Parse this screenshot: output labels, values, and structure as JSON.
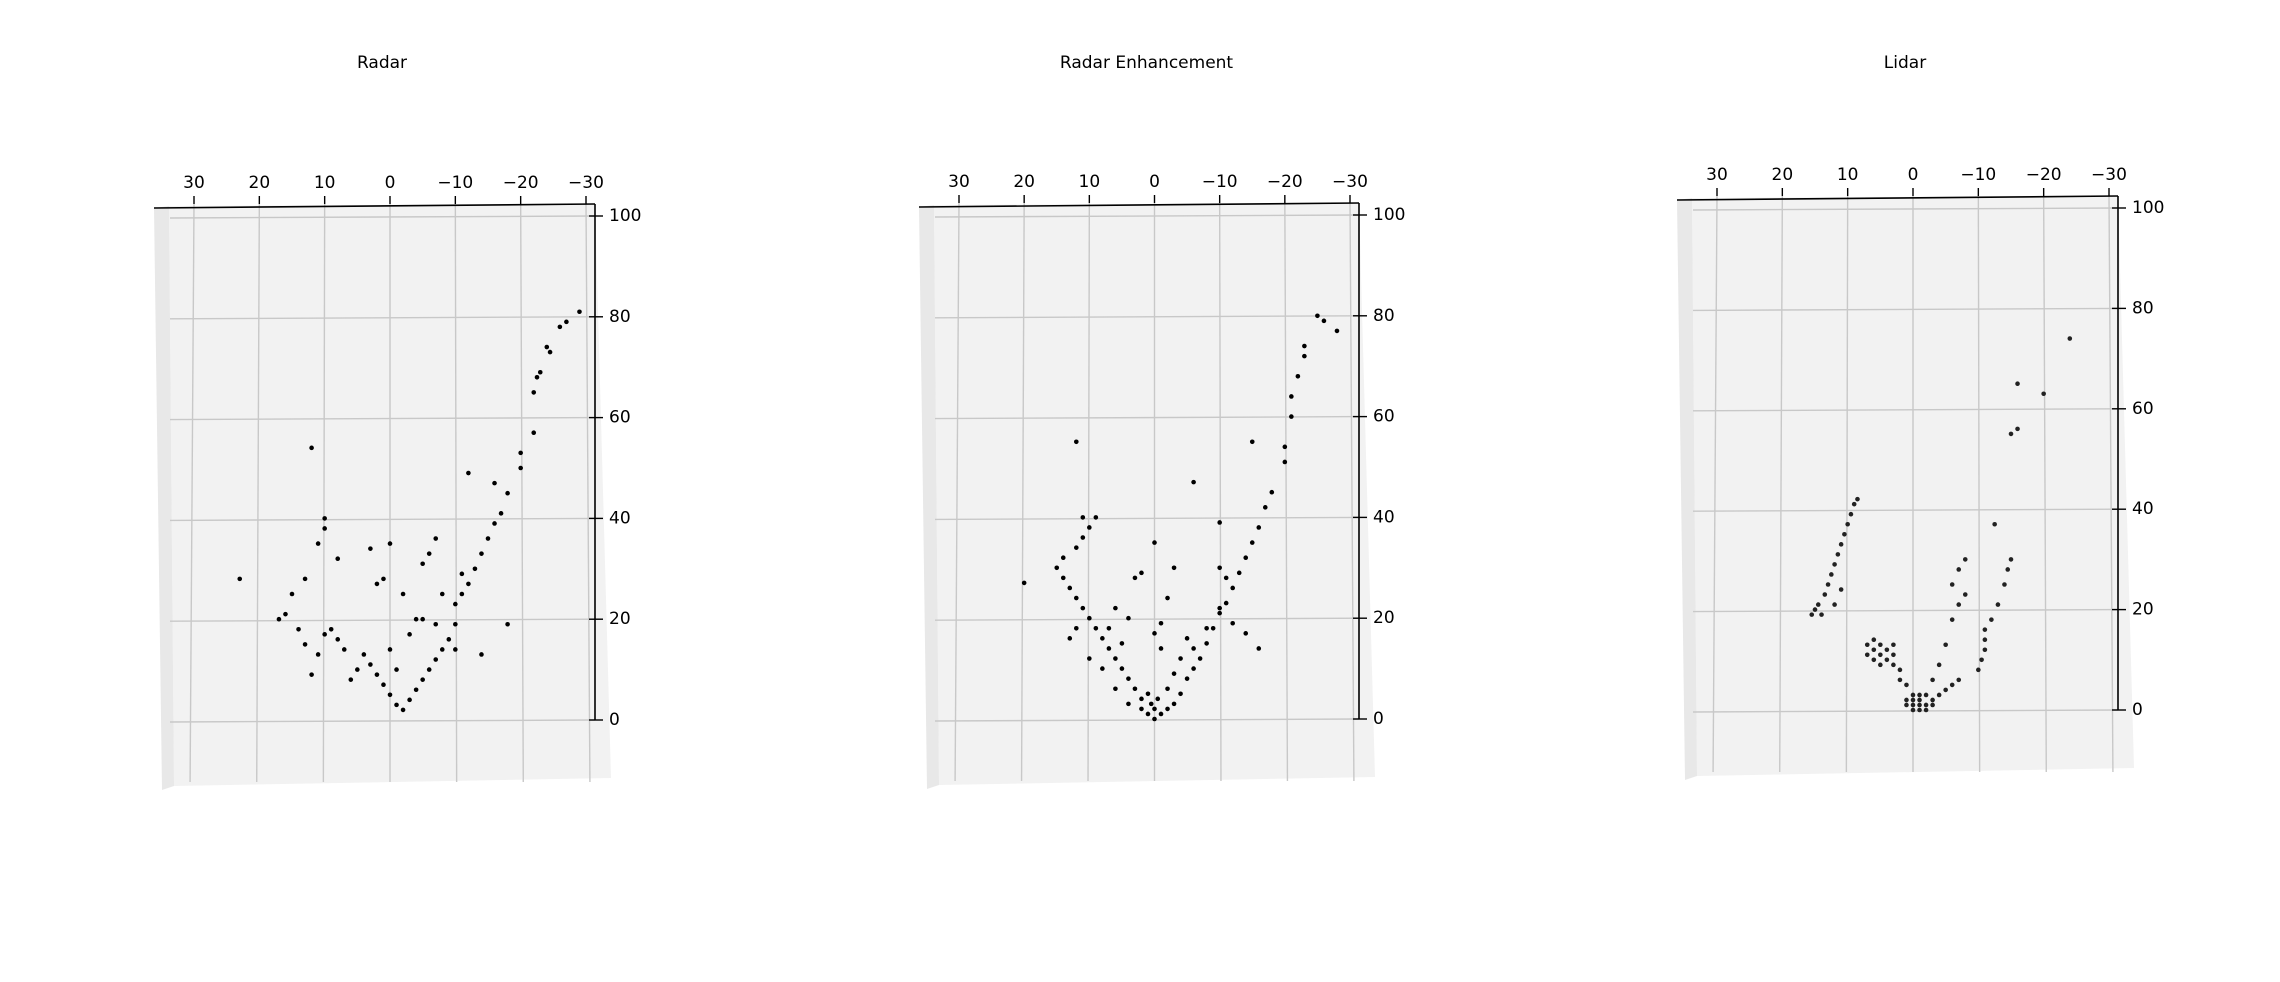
{
  "chart_data": [
    {
      "type": "scatter",
      "title": "Radar",
      "color": "#000000",
      "x": [
        -26,
        -27,
        -29,
        -24,
        -24.5,
        -23,
        -22.5,
        -22,
        -22,
        -20,
        -20,
        -18,
        -16,
        -17,
        -16,
        -15,
        -14,
        -13,
        -12,
        -11,
        -10,
        -10,
        -9,
        -8,
        -7,
        -6,
        -5,
        -4,
        -3,
        -2,
        -1,
        0,
        1,
        2,
        3,
        4,
        5,
        6,
        7,
        8,
        9,
        10,
        11,
        12,
        13,
        -1,
        0,
        -3,
        -5,
        -7,
        -10,
        -14,
        -6,
        -7,
        -5,
        1,
        2,
        12,
        10,
        10,
        11,
        8,
        13,
        15,
        16,
        17,
        14,
        23,
        -12,
        -18,
        -11,
        -4,
        -2,
        0,
        3,
        -8
      ],
      "values": [
        78,
        79,
        81,
        74,
        73,
        69,
        68,
        65,
        57,
        53,
        50,
        45,
        47,
        41,
        39,
        36,
        33,
        30,
        27,
        25,
        23,
        19,
        16,
        14,
        12,
        10,
        8,
        6,
        4,
        2,
        3,
        5,
        7,
        9,
        11,
        13,
        10,
        8,
        14,
        16,
        18,
        17,
        13,
        9,
        15,
        10,
        14,
        17,
        20,
        19,
        14,
        13,
        33,
        36,
        31,
        28,
        27,
        54,
        40,
        38,
        35,
        32,
        28,
        25,
        21,
        20,
        18,
        28,
        49,
        19,
        29,
        20,
        25,
        35,
        34,
        25
      ],
      "xlim": [
        30,
        -30
      ],
      "ylim": [
        0,
        100
      ],
      "xticks": [
        30,
        20,
        10,
        0,
        {
          "value": -10,
          "label": "−10"
        },
        {
          "value": -20,
          "label": "−20"
        },
        {
          "value": -30,
          "label": "−30"
        }
      ],
      "yticks": [
        0,
        20,
        40,
        60,
        80,
        100
      ],
      "grid": true
    },
    {
      "type": "scatter",
      "title": "Radar Enhancement",
      "color": "#000000",
      "x": [
        -25,
        -26,
        -28,
        -23,
        -23,
        -22,
        -21,
        -21,
        -20,
        -20,
        -18,
        -17,
        -16,
        -15,
        -14,
        -13,
        -12,
        -11,
        -10,
        -9,
        -8,
        -7,
        -6,
        -5,
        -4,
        -3,
        -2,
        -1,
        0,
        0,
        1,
        0.5,
        -0.5,
        1,
        2,
        3,
        4,
        5,
        6,
        7,
        8,
        9,
        10,
        11,
        12,
        13,
        14,
        15,
        11,
        10,
        11,
        9,
        12,
        14,
        20,
        13,
        12,
        10,
        8,
        6,
        4,
        2,
        -2,
        -3,
        -4,
        -6,
        -8,
        -10,
        -12,
        -14,
        -16,
        -11,
        -10,
        -1,
        0,
        -1,
        3,
        2,
        -6,
        -10,
        -15,
        12,
        0,
        -3,
        -2,
        4,
        6,
        5,
        7,
        -5
      ],
      "values": [
        80,
        79,
        77,
        74,
        72,
        68,
        64,
        60,
        54,
        51,
        45,
        42,
        38,
        35,
        32,
        29,
        26,
        23,
        21,
        18,
        15,
        12,
        10,
        8,
        5,
        3,
        2,
        1,
        0,
        2,
        1,
        3,
        4,
        5,
        4,
        6,
        8,
        10,
        12,
        14,
        16,
        18,
        20,
        22,
        24,
        26,
        28,
        30,
        36,
        38,
        40,
        40,
        34,
        32,
        27,
        16,
        18,
        12,
        10,
        6,
        3,
        2,
        6,
        9,
        12,
        14,
        18,
        22,
        19,
        17,
        14,
        28,
        30,
        14,
        17,
        19,
        28,
        29,
        47,
        39,
        55,
        55,
        35,
        30,
        24,
        20,
        22,
        15,
        18,
        16
      ],
      "xlim": [
        30,
        -30
      ],
      "ylim": [
        0,
        100
      ],
      "xticks": [
        30,
        20,
        10,
        0,
        {
          "value": -10,
          "label": "−10"
        },
        {
          "value": -20,
          "label": "−20"
        },
        {
          "value": -30,
          "label": "−30"
        }
      ],
      "yticks": [
        0,
        20,
        40,
        60,
        80,
        100
      ],
      "grid": true
    },
    {
      "type": "scatter",
      "title": "Lidar",
      "color": "#222222",
      "x": [
        14,
        14.5,
        13.5,
        13,
        12.5,
        12,
        11.5,
        11,
        10.5,
        10,
        9.5,
        9,
        8.5,
        15,
        15.5,
        12,
        11,
        6,
        5,
        4,
        3,
        5,
        6,
        7,
        4,
        3,
        2,
        5,
        6,
        7,
        3,
        2,
        1,
        -1,
        0,
        -2,
        -1,
        0,
        -2,
        -1,
        0,
        -3,
        1,
        -1,
        -2,
        0,
        1,
        -3,
        -4,
        -5,
        -6,
        -7,
        -3,
        -4,
        -5,
        -6,
        -7,
        -8,
        -6,
        -10,
        -10.5,
        -11,
        -11,
        -11,
        -12,
        -13,
        -14,
        -14.5,
        -15,
        -12.5,
        -15,
        -16,
        -20,
        -16,
        -24,
        -8,
        -7
      ],
      "values": [
        19,
        21,
        23,
        25,
        27,
        29,
        31,
        33,
        35,
        37,
        39,
        41,
        42,
        20,
        19,
        21,
        24,
        14,
        13,
        12,
        11,
        11,
        12,
        13,
        10,
        9,
        8,
        9,
        10,
        11,
        13,
        6,
        5,
        0,
        0,
        0,
        1,
        1,
        1,
        2,
        2,
        1,
        1,
        3,
        3,
        3,
        2,
        2,
        3,
        4,
        5,
        6,
        6,
        9,
        13,
        18,
        21,
        23,
        25,
        8,
        10,
        12,
        14,
        16,
        18,
        21,
        25,
        28,
        30,
        37,
        55,
        56,
        63,
        65,
        74,
        30,
        28
      ],
      "xlim": [
        30,
        -30
      ],
      "ylim": [
        0,
        100
      ],
      "xticks": [
        30,
        20,
        10,
        0,
        {
          "value": -10,
          "label": "−10"
        },
        {
          "value": -20,
          "label": "−20"
        },
        {
          "value": -30,
          "label": "−30"
        }
      ],
      "yticks": [
        0,
        20,
        40,
        60,
        80,
        100
      ],
      "grid": true
    }
  ]
}
